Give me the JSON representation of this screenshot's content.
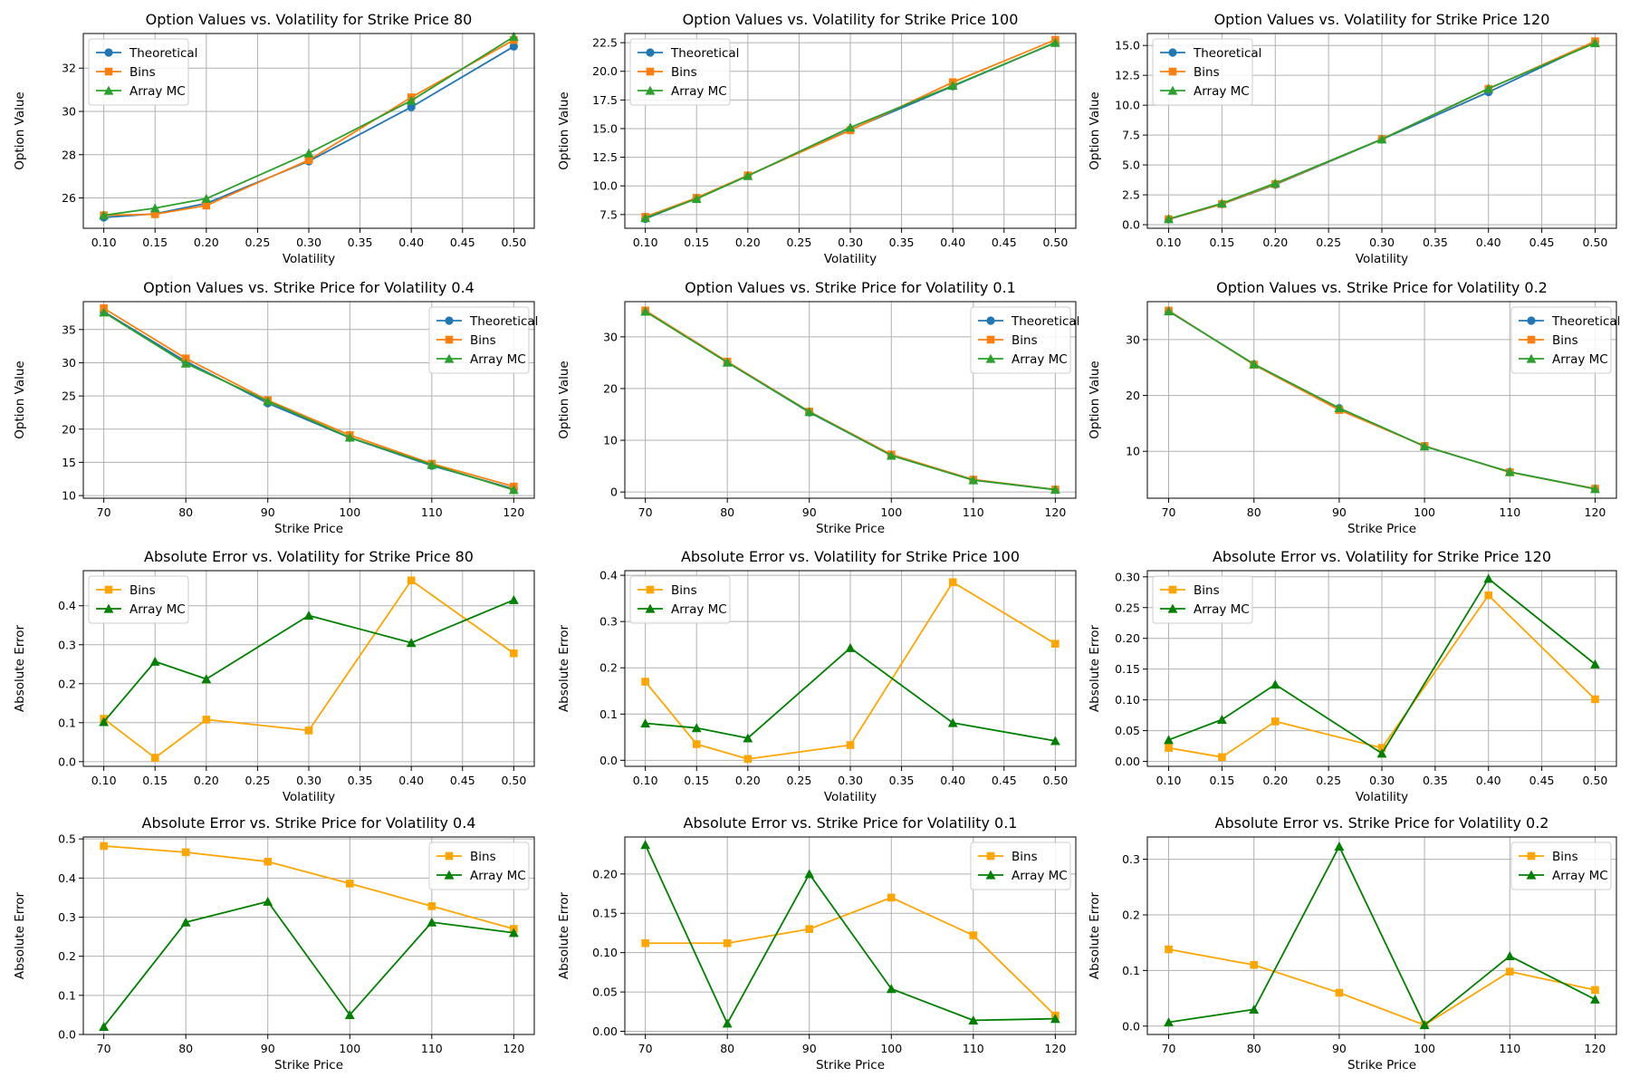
{
  "colors": {
    "Theoretical": "#1f77b4",
    "Bins_top": "#ff7f0e",
    "Array MC_top": "#2ca02c",
    "Bins_err": "#ffa500",
    "Array MC_err": "#008000"
  },
  "chart_data": [
    {
      "type": "line",
      "title": "Option Values vs. Volatility for Strike Price 80",
      "xlabel": "Volatility",
      "ylabel": "Option Value",
      "x": [
        0.1,
        0.15,
        0.2,
        0.3,
        0.4,
        0.5
      ],
      "xlim": [
        0.08,
        0.52
      ],
      "ylim": [
        24.6,
        33.6
      ],
      "xticks": [
        0.1,
        0.15,
        0.2,
        0.25,
        0.3,
        0.35,
        0.4,
        0.45,
        0.5
      ],
      "xtick_labels": [
        "0.10",
        "0.15",
        "0.20",
        "0.25",
        "0.30",
        "0.35",
        "0.40",
        "0.45",
        "0.50"
      ],
      "yticks": [
        26,
        28,
        30,
        32
      ],
      "ytick_labels": [
        "26",
        "28",
        "30",
        "32"
      ],
      "legend_loc": "upper-left",
      "series": [
        {
          "name": "Theoretical",
          "marker": "circle",
          "color_key": "Theoretical",
          "values": [
            25.1,
            25.27,
            25.75,
            27.7,
            30.2,
            33.0
          ]
        },
        {
          "name": "Bins",
          "marker": "square",
          "color_key": "Bins_top",
          "values": [
            25.2,
            25.25,
            25.65,
            27.75,
            30.65,
            33.3
          ]
        },
        {
          "name": "Array MC",
          "marker": "triangle",
          "color_key": "Array MC_top",
          "values": [
            25.2,
            25.53,
            25.97,
            28.07,
            30.5,
            33.45
          ]
        }
      ]
    },
    {
      "type": "line",
      "title": "Option Values vs. Volatility for Strike Price 100",
      "xlabel": "Volatility",
      "ylabel": "Option Value",
      "x": [
        0.1,
        0.15,
        0.2,
        0.3,
        0.4,
        0.5
      ],
      "xlim": [
        0.08,
        0.52
      ],
      "ylim": [
        6.3,
        23.3
      ],
      "xticks": [
        0.1,
        0.15,
        0.2,
        0.25,
        0.3,
        0.35,
        0.4,
        0.45,
        0.5
      ],
      "xtick_labels": [
        "0.10",
        "0.15",
        "0.20",
        "0.25",
        "0.30",
        "0.35",
        "0.40",
        "0.45",
        "0.50"
      ],
      "yticks": [
        7.5,
        10.0,
        12.5,
        15.0,
        17.5,
        20.0,
        22.5
      ],
      "ytick_labels": [
        "7.5",
        "10.0",
        "12.5",
        "15.0",
        "17.5",
        "20.0",
        "22.5"
      ],
      "legend_loc": "upper-left",
      "series": [
        {
          "name": "Theoretical",
          "marker": "circle",
          "color_key": "Theoretical",
          "values": [
            7.13,
            8.92,
            10.9,
            14.9,
            18.7,
            22.5
          ]
        },
        {
          "name": "Bins",
          "marker": "square",
          "color_key": "Bins_top",
          "values": [
            7.3,
            8.96,
            10.92,
            14.85,
            19.05,
            22.75
          ]
        },
        {
          "name": "Array MC",
          "marker": "triangle",
          "color_key": "Array MC_top",
          "values": [
            7.2,
            8.87,
            10.87,
            15.1,
            18.75,
            22.5
          ]
        }
      ]
    },
    {
      "type": "line",
      "title": "Option Values vs. Volatility for Strike Price 120",
      "xlabel": "Volatility",
      "ylabel": "Option Value",
      "x": [
        0.1,
        0.15,
        0.2,
        0.3,
        0.4,
        0.5
      ],
      "xlim": [
        0.08,
        0.52
      ],
      "ylim": [
        -0.3,
        16.0
      ],
      "xticks": [
        0.1,
        0.15,
        0.2,
        0.25,
        0.3,
        0.35,
        0.4,
        0.45,
        0.5
      ],
      "xtick_labels": [
        "0.10",
        "0.15",
        "0.20",
        "0.25",
        "0.30",
        "0.35",
        "0.40",
        "0.45",
        "0.50"
      ],
      "yticks": [
        0.0,
        2.5,
        5.0,
        7.5,
        10.0,
        12.5,
        15.0
      ],
      "ytick_labels": [
        "0.0",
        "2.5",
        "5.0",
        "7.5",
        "10.0",
        "12.5",
        "15.0"
      ],
      "legend_loc": "upper-left",
      "series": [
        {
          "name": "Theoretical",
          "marker": "circle",
          "color_key": "Theoretical",
          "values": [
            0.45,
            1.72,
            3.35,
            7.14,
            11.1,
            15.3
          ]
        },
        {
          "name": "Bins",
          "marker": "square",
          "color_key": "Bins_top",
          "values": [
            0.46,
            1.73,
            3.4,
            7.16,
            11.37,
            15.35
          ]
        },
        {
          "name": "Array MC",
          "marker": "triangle",
          "color_key": "Array MC_top",
          "values": [
            0.48,
            1.79,
            3.47,
            7.15,
            11.4,
            15.2
          ]
        }
      ]
    },
    {
      "type": "line",
      "title": "Option Values vs. Strike Price for Volatility 0.4",
      "xlabel": "Strike Price",
      "ylabel": "Option Value",
      "x": [
        70,
        80,
        90,
        100,
        110,
        120
      ],
      "xlim": [
        67.5,
        122.5
      ],
      "ylim": [
        9.6,
        39.2
      ],
      "xticks": [
        70,
        80,
        90,
        100,
        110,
        120
      ],
      "xtick_labels": [
        "70",
        "80",
        "90",
        "100",
        "110",
        "120"
      ],
      "yticks": [
        10,
        15,
        20,
        25,
        30,
        35
      ],
      "ytick_labels": [
        "10",
        "15",
        "20",
        "25",
        "30",
        "35"
      ],
      "legend_loc": "upper-right",
      "series": [
        {
          "name": "Theoretical",
          "marker": "circle",
          "color_key": "Theoretical",
          "values": [
            37.7,
            30.2,
            23.9,
            18.7,
            14.5,
            11.0
          ]
        },
        {
          "name": "Bins",
          "marker": "square",
          "color_key": "Bins_top",
          "values": [
            38.2,
            30.65,
            24.35,
            19.1,
            14.8,
            11.35
          ]
        },
        {
          "name": "Array MC",
          "marker": "triangle",
          "color_key": "Array MC_top",
          "values": [
            37.6,
            29.9,
            24.2,
            18.75,
            14.65,
            10.85
          ]
        }
      ]
    },
    {
      "type": "line",
      "title": "Option Values vs. Strike Price for Volatility 0.1",
      "xlabel": "Strike Price",
      "ylabel": "Option Value",
      "x": [
        70,
        80,
        90,
        100,
        110,
        120
      ],
      "xlim": [
        67.5,
        122.5
      ],
      "ylim": [
        -1.2,
        36.8
      ],
      "xticks": [
        70,
        80,
        90,
        100,
        110,
        120
      ],
      "xtick_labels": [
        "70",
        "80",
        "90",
        "100",
        "110",
        "120"
      ],
      "yticks": [
        0,
        10,
        20,
        30
      ],
      "ytick_labels": [
        "0",
        "10",
        "20",
        "30"
      ],
      "legend_loc": "upper-right",
      "series": [
        {
          "name": "Theoretical",
          "marker": "circle",
          "color_key": "Theoretical",
          "values": [
            35.0,
            25.1,
            15.4,
            7.1,
            2.3,
            0.46
          ]
        },
        {
          "name": "Bins",
          "marker": "square",
          "color_key": "Bins_top",
          "values": [
            35.1,
            25.2,
            15.55,
            7.25,
            2.4,
            0.48
          ]
        },
        {
          "name": "Array MC",
          "marker": "triangle",
          "color_key": "Array MC_top",
          "values": [
            34.9,
            25.05,
            15.5,
            7.05,
            2.3,
            0.45
          ]
        }
      ]
    },
    {
      "type": "line",
      "title": "Option Values vs. Strike Price for Volatility 0.2",
      "xlabel": "Strike Price",
      "ylabel": "Option Value",
      "x": [
        70,
        80,
        90,
        100,
        110,
        120
      ],
      "xlim": [
        67.5,
        122.5
      ],
      "ylim": [
        1.6,
        36.8
      ],
      "xticks": [
        70,
        80,
        90,
        100,
        110,
        120
      ],
      "xtick_labels": [
        "70",
        "80",
        "90",
        "100",
        "110",
        "120"
      ],
      "yticks": [
        10,
        20,
        30
      ],
      "ytick_labels": [
        "10",
        "20",
        "30"
      ],
      "legend_loc": "upper-right",
      "series": [
        {
          "name": "Theoretical",
          "marker": "circle",
          "color_key": "Theoretical",
          "values": [
            35.1,
            25.6,
            17.7,
            10.9,
            6.3,
            3.3
          ]
        },
        {
          "name": "Bins",
          "marker": "square",
          "color_key": "Bins_top",
          "values": [
            35.2,
            25.5,
            17.4,
            10.95,
            6.25,
            3.3
          ]
        },
        {
          "name": "Array MC",
          "marker": "triangle",
          "color_key": "Array MC_top",
          "values": [
            35.1,
            25.6,
            17.75,
            10.9,
            6.3,
            3.25
          ]
        }
      ]
    },
    {
      "type": "line",
      "title": "Absolute Error vs. Volatility for Strike Price 80",
      "xlabel": "Volatility",
      "ylabel": "Absolute Error",
      "x": [
        0.1,
        0.15,
        0.2,
        0.3,
        0.4,
        0.5
      ],
      "xlim": [
        0.08,
        0.52
      ],
      "ylim": [
        -0.012,
        0.49
      ],
      "xticks": [
        0.1,
        0.15,
        0.2,
        0.25,
        0.3,
        0.35,
        0.4,
        0.45,
        0.5
      ],
      "xtick_labels": [
        "0.10",
        "0.15",
        "0.20",
        "0.25",
        "0.30",
        "0.35",
        "0.40",
        "0.45",
        "0.50"
      ],
      "yticks": [
        0.0,
        0.1,
        0.2,
        0.3,
        0.4
      ],
      "ytick_labels": [
        "0.0",
        "0.1",
        "0.2",
        "0.3",
        "0.4"
      ],
      "legend_loc": "upper-left",
      "series": [
        {
          "name": "Bins",
          "marker": "square",
          "color_key": "Bins_err",
          "values": [
            0.11,
            0.01,
            0.108,
            0.08,
            0.465,
            0.278
          ]
        },
        {
          "name": "Array MC",
          "marker": "triangle",
          "color_key": "Array MC_err",
          "values": [
            0.102,
            0.257,
            0.212,
            0.375,
            0.305,
            0.415
          ]
        }
      ]
    },
    {
      "type": "line",
      "title": "Absolute Error vs. Volatility for Strike Price 100",
      "xlabel": "Volatility",
      "ylabel": "Absolute Error",
      "x": [
        0.1,
        0.15,
        0.2,
        0.3,
        0.4,
        0.5
      ],
      "xlim": [
        0.08,
        0.52
      ],
      "ylim": [
        -0.013,
        0.41
      ],
      "xticks": [
        0.1,
        0.15,
        0.2,
        0.25,
        0.3,
        0.35,
        0.4,
        0.45,
        0.5
      ],
      "xtick_labels": [
        "0.10",
        "0.15",
        "0.20",
        "0.25",
        "0.30",
        "0.35",
        "0.40",
        "0.45",
        "0.50"
      ],
      "yticks": [
        0.0,
        0.1,
        0.2,
        0.3,
        0.4
      ],
      "ytick_labels": [
        "0.0",
        "0.1",
        "0.2",
        "0.3",
        "0.4"
      ],
      "legend_loc": "upper-left",
      "series": [
        {
          "name": "Bins",
          "marker": "square",
          "color_key": "Bins_err",
          "values": [
            0.17,
            0.035,
            0.003,
            0.033,
            0.385,
            0.252
          ]
        },
        {
          "name": "Array MC",
          "marker": "triangle",
          "color_key": "Array MC_err",
          "values": [
            0.08,
            0.07,
            0.048,
            0.243,
            0.081,
            0.042
          ]
        }
      ]
    },
    {
      "type": "line",
      "title": "Absolute Error vs. Volatility for Strike Price 120",
      "xlabel": "Volatility",
      "ylabel": "Absolute Error",
      "x": [
        0.1,
        0.15,
        0.2,
        0.3,
        0.4,
        0.5
      ],
      "xlim": [
        0.08,
        0.52
      ],
      "ylim": [
        -0.008,
        0.31
      ],
      "xticks": [
        0.1,
        0.15,
        0.2,
        0.25,
        0.3,
        0.35,
        0.4,
        0.45,
        0.5
      ],
      "xtick_labels": [
        "0.10",
        "0.15",
        "0.20",
        "0.25",
        "0.30",
        "0.35",
        "0.40",
        "0.45",
        "0.50"
      ],
      "yticks": [
        0.0,
        0.05,
        0.1,
        0.15,
        0.2,
        0.25,
        0.3
      ],
      "ytick_labels": [
        "0.00",
        "0.05",
        "0.10",
        "0.15",
        "0.20",
        "0.25",
        "0.30"
      ],
      "legend_loc": "upper-left",
      "series": [
        {
          "name": "Bins",
          "marker": "square",
          "color_key": "Bins_err",
          "values": [
            0.022,
            0.007,
            0.065,
            0.022,
            0.27,
            0.101
          ]
        },
        {
          "name": "Array MC",
          "marker": "triangle",
          "color_key": "Array MC_err",
          "values": [
            0.035,
            0.068,
            0.125,
            0.013,
            0.297,
            0.158
          ]
        }
      ]
    },
    {
      "type": "line",
      "title": "Absolute Error vs. Strike Price for Volatility 0.4",
      "xlabel": "Strike Price",
      "ylabel": "Absolute Error",
      "x": [
        70,
        80,
        90,
        100,
        110,
        120
      ],
      "xlim": [
        67.5,
        122.5
      ],
      "ylim": [
        0.0,
        0.505
      ],
      "xticks": [
        70,
        80,
        90,
        100,
        110,
        120
      ],
      "xtick_labels": [
        "70",
        "80",
        "90",
        "100",
        "110",
        "120"
      ],
      "yticks": [
        0.0,
        0.1,
        0.2,
        0.3,
        0.4,
        0.5
      ],
      "ytick_labels": [
        "0.0",
        "0.1",
        "0.2",
        "0.3",
        "0.4",
        "0.5"
      ],
      "legend_loc": "upper-right",
      "series": [
        {
          "name": "Bins",
          "marker": "square",
          "color_key": "Bins_err",
          "values": [
            0.482,
            0.466,
            0.442,
            0.386,
            0.328,
            0.27
          ]
        },
        {
          "name": "Array MC",
          "marker": "triangle",
          "color_key": "Array MC_err",
          "values": [
            0.02,
            0.287,
            0.34,
            0.05,
            0.287,
            0.26
          ]
        }
      ]
    },
    {
      "type": "line",
      "title": "Absolute Error vs. Strike Price for Volatility 0.1",
      "xlabel": "Strike Price",
      "ylabel": "Absolute Error",
      "x": [
        70,
        80,
        90,
        100,
        110,
        120
      ],
      "xlim": [
        67.5,
        122.5
      ],
      "ylim": [
        -0.004,
        0.247
      ],
      "xticks": [
        70,
        80,
        90,
        100,
        110,
        120
      ],
      "xtick_labels": [
        "70",
        "80",
        "90",
        "100",
        "110",
        "120"
      ],
      "yticks": [
        0.0,
        0.05,
        0.1,
        0.15,
        0.2
      ],
      "ytick_labels": [
        "0.00",
        "0.05",
        "0.10",
        "0.15",
        "0.20"
      ],
      "legend_loc": "upper-right",
      "series": [
        {
          "name": "Bins",
          "marker": "square",
          "color_key": "Bins_err",
          "values": [
            0.112,
            0.112,
            0.13,
            0.17,
            0.122,
            0.02
          ]
        },
        {
          "name": "Array MC",
          "marker": "triangle",
          "color_key": "Array MC_err",
          "values": [
            0.237,
            0.01,
            0.2,
            0.054,
            0.014,
            0.016
          ]
        }
      ]
    },
    {
      "type": "line",
      "title": "Absolute Error vs. Strike Price for Volatility 0.2",
      "xlabel": "Strike Price",
      "ylabel": "Absolute Error",
      "x": [
        70,
        80,
        90,
        100,
        110,
        120
      ],
      "xlim": [
        67.5,
        122.5
      ],
      "ylim": [
        -0.015,
        0.34
      ],
      "xticks": [
        70,
        80,
        90,
        100,
        110,
        120
      ],
      "xtick_labels": [
        "70",
        "80",
        "90",
        "100",
        "110",
        "120"
      ],
      "yticks": [
        0.0,
        0.1,
        0.2,
        0.3
      ],
      "ytick_labels": [
        "0.0",
        "0.1",
        "0.2",
        "0.3"
      ],
      "legend_loc": "upper-right",
      "series": [
        {
          "name": "Bins",
          "marker": "square",
          "color_key": "Bins_err",
          "values": [
            0.138,
            0.11,
            0.06,
            0.002,
            0.098,
            0.065
          ]
        },
        {
          "name": "Array MC",
          "marker": "triangle",
          "color_key": "Array MC_err",
          "values": [
            0.007,
            0.03,
            0.323,
            0.002,
            0.126,
            0.048
          ]
        }
      ]
    }
  ]
}
